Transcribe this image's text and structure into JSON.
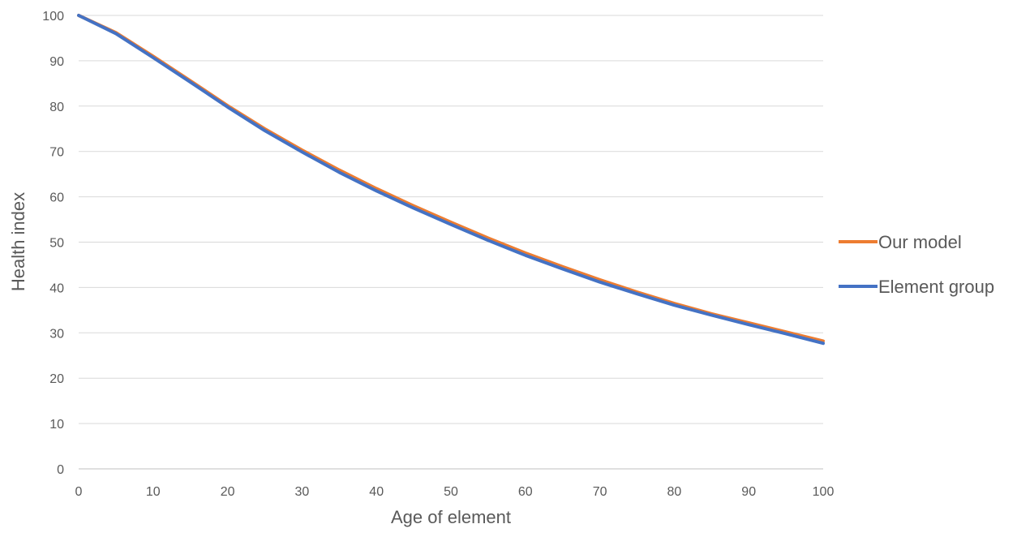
{
  "chart_data": {
    "type": "line",
    "title": "",
    "xlabel": "Age of element",
    "ylabel": "Health index",
    "xlim": [
      0,
      100
    ],
    "ylim": [
      0,
      100
    ],
    "x_ticks": [
      0,
      10,
      20,
      30,
      40,
      50,
      60,
      70,
      80,
      90,
      100
    ],
    "y_ticks": [
      0,
      10,
      20,
      30,
      40,
      50,
      60,
      70,
      80,
      90,
      100
    ],
    "grid": "horizontal",
    "legend_position": "right",
    "x": [
      0,
      5,
      10,
      15,
      20,
      25,
      30,
      35,
      40,
      45,
      50,
      55,
      60,
      65,
      70,
      75,
      80,
      85,
      90,
      95,
      100
    ],
    "series": [
      {
        "name": "Our model",
        "color": "#ED7D31",
        "values": [
          100,
          96.2,
          91.0,
          85.6,
          80.1,
          75.0,
          70.3,
          65.9,
          61.8,
          58.0,
          54.4,
          50.9,
          47.6,
          44.6,
          41.7,
          39.0,
          36.5,
          34.2,
          32.2,
          30.2,
          28.2
        ]
      },
      {
        "name": "Element group",
        "color": "#4472C4",
        "values": [
          100,
          96.0,
          90.7,
          85.3,
          79.8,
          74.6,
          69.9,
          65.4,
          61.3,
          57.5,
          53.9,
          50.4,
          47.1,
          44.1,
          41.2,
          38.6,
          36.1,
          33.9,
          31.8,
          29.8,
          27.7
        ]
      }
    ]
  }
}
